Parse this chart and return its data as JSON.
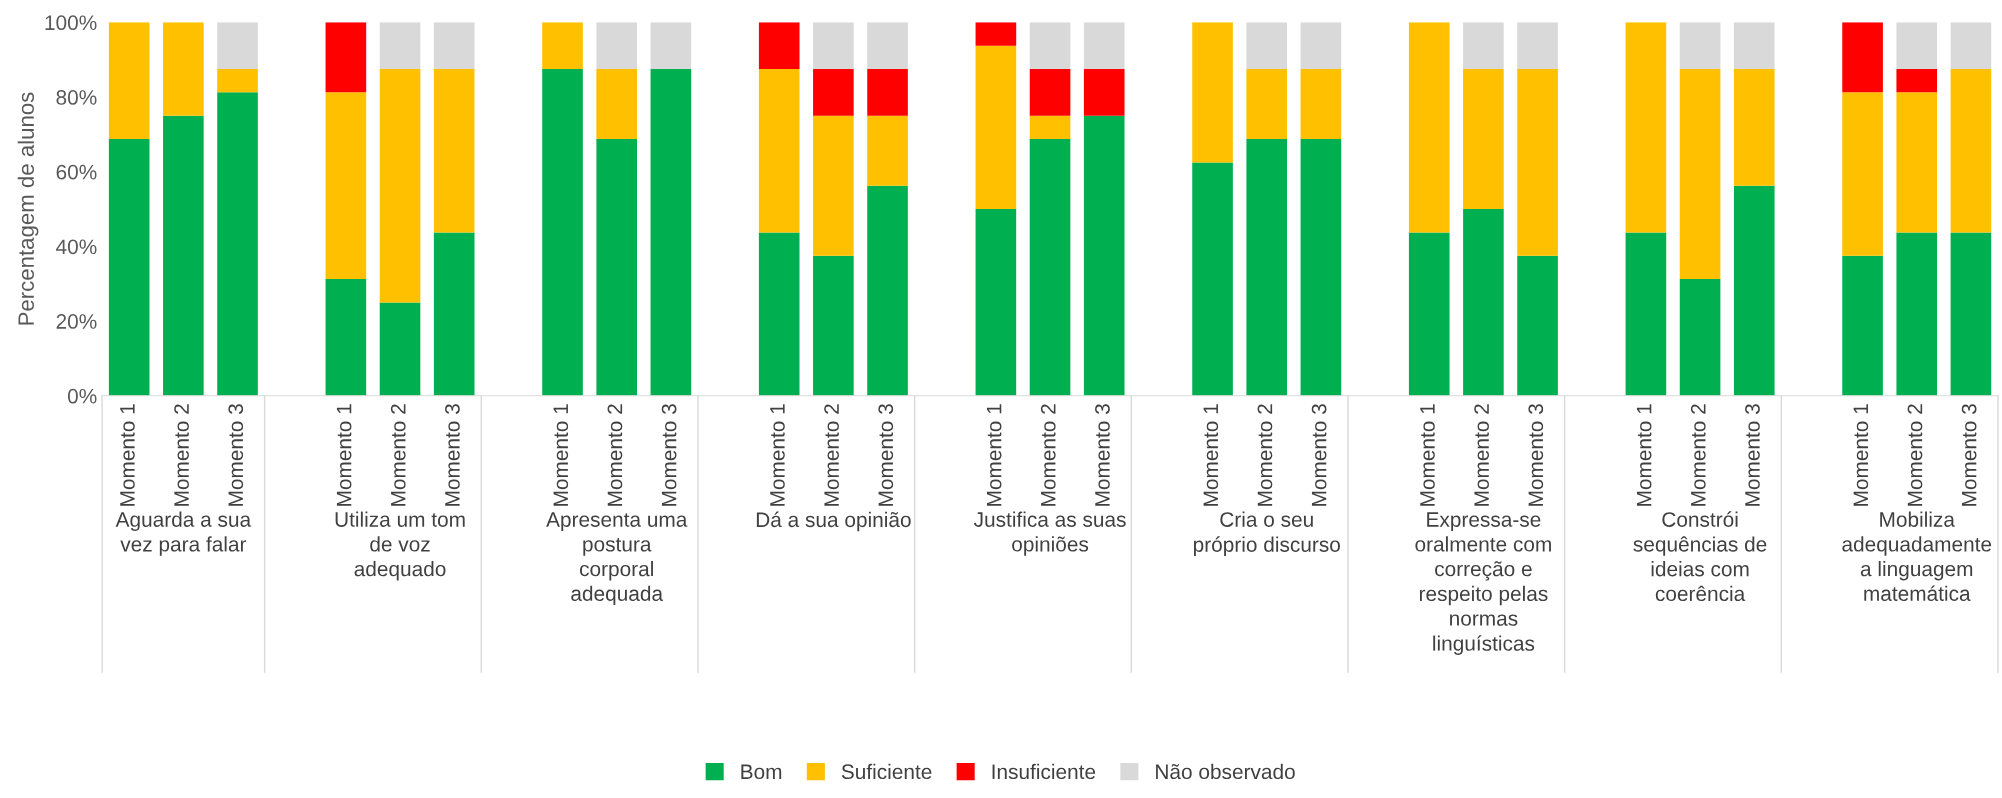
{
  "chart_data": {
    "type": "bar",
    "stacked": true,
    "ylabel": "Percentagem de alunos",
    "categories": [
      "Momento 1",
      "Momento 2",
      "Momento 3",
      "Momento 1",
      "Momento 2",
      "Momento 3",
      "Momento 1",
      "Momento 2",
      "Momento 3",
      "Momento 1",
      "Momento 2",
      "Momento 3",
      "Momento 1",
      "Momento 2",
      "Momento 3",
      "Momento 1",
      "Momento 2",
      "Momento 3",
      "Momento 1",
      "Momento 2",
      "Momento 3",
      "Momento 1",
      "Momento 2",
      "Momento 3",
      "Momento 1",
      "Momento 2",
      "Momento 3"
    ],
    "annotations": [
      "Aguarda a sua\nvez para falar",
      "Utiliza um tom\nde voz\nadequado",
      "Apresenta uma\npostura\ncorporal\nadequada",
      "Dá a sua opinião",
      "Justifica as suas\nopiniões",
      "Cria o seu\npróprio discurso",
      "Expressa-se\noralmente com\ncorreção e\nrespeito pelas\nnormas\nlinguísticas",
      "Constrói\nsequências de\nideias com\ncoerência",
      "Mobiliza\nadequadamente\na linguagem\nmatemática"
    ],
    "series": [
      {
        "name": "Bom",
        "color": "#00b050",
        "values": [
          68.75,
          75,
          81.25,
          31.25,
          25,
          43.75,
          87.5,
          68.75,
          87.5,
          43.75,
          37.5,
          56.25,
          50,
          68.75,
          75,
          62.5,
          68.75,
          68.75,
          43.75,
          50,
          37.5,
          43.75,
          31.25,
          56.25,
          37.5,
          43.75,
          43.75
        ]
      },
      {
        "name": "Suficiente",
        "color": "#ffc000",
        "values": [
          31.25,
          25,
          6.25,
          50,
          62.5,
          43.75,
          12.5,
          18.75,
          0,
          43.75,
          37.5,
          18.75,
          43.75,
          6.25,
          0,
          37.5,
          18.75,
          18.75,
          56.25,
          37.5,
          50,
          56.25,
          56.25,
          31.25,
          43.75,
          37.5,
          43.75
        ]
      },
      {
        "name": "Insuficiente",
        "color": "#ff0000",
        "values": [
          0,
          0,
          0,
          18.75,
          0,
          0,
          0,
          0,
          0,
          12.5,
          12.5,
          12.5,
          6.25,
          12.5,
          12.5,
          0,
          0,
          0,
          0,
          0,
          0,
          0,
          0,
          0,
          18.75,
          6.25,
          0
        ]
      },
      {
        "name": "Não observado",
        "color": "#d9d9d9",
        "values": [
          0,
          0,
          12.5,
          0,
          12.5,
          12.5,
          0,
          12.5,
          12.5,
          0,
          12.5,
          12.5,
          0,
          12.5,
          12.5,
          0,
          12.5,
          12.5,
          0,
          12.5,
          12.5,
          0,
          12.5,
          12.5,
          0,
          12.5,
          12.5
        ]
      }
    ],
    "ylim": [
      0,
      100
    ],
    "yticks": [
      {
        "value": 0,
        "label": "0%"
      },
      {
        "value": 20,
        "label": "20%"
      },
      {
        "value": 40,
        "label": "40%"
      },
      {
        "value": 60,
        "label": "60%"
      },
      {
        "value": 80,
        "label": "80%"
      },
      {
        "value": 100,
        "label": "100%"
      }
    ],
    "legend": "bottom"
  }
}
